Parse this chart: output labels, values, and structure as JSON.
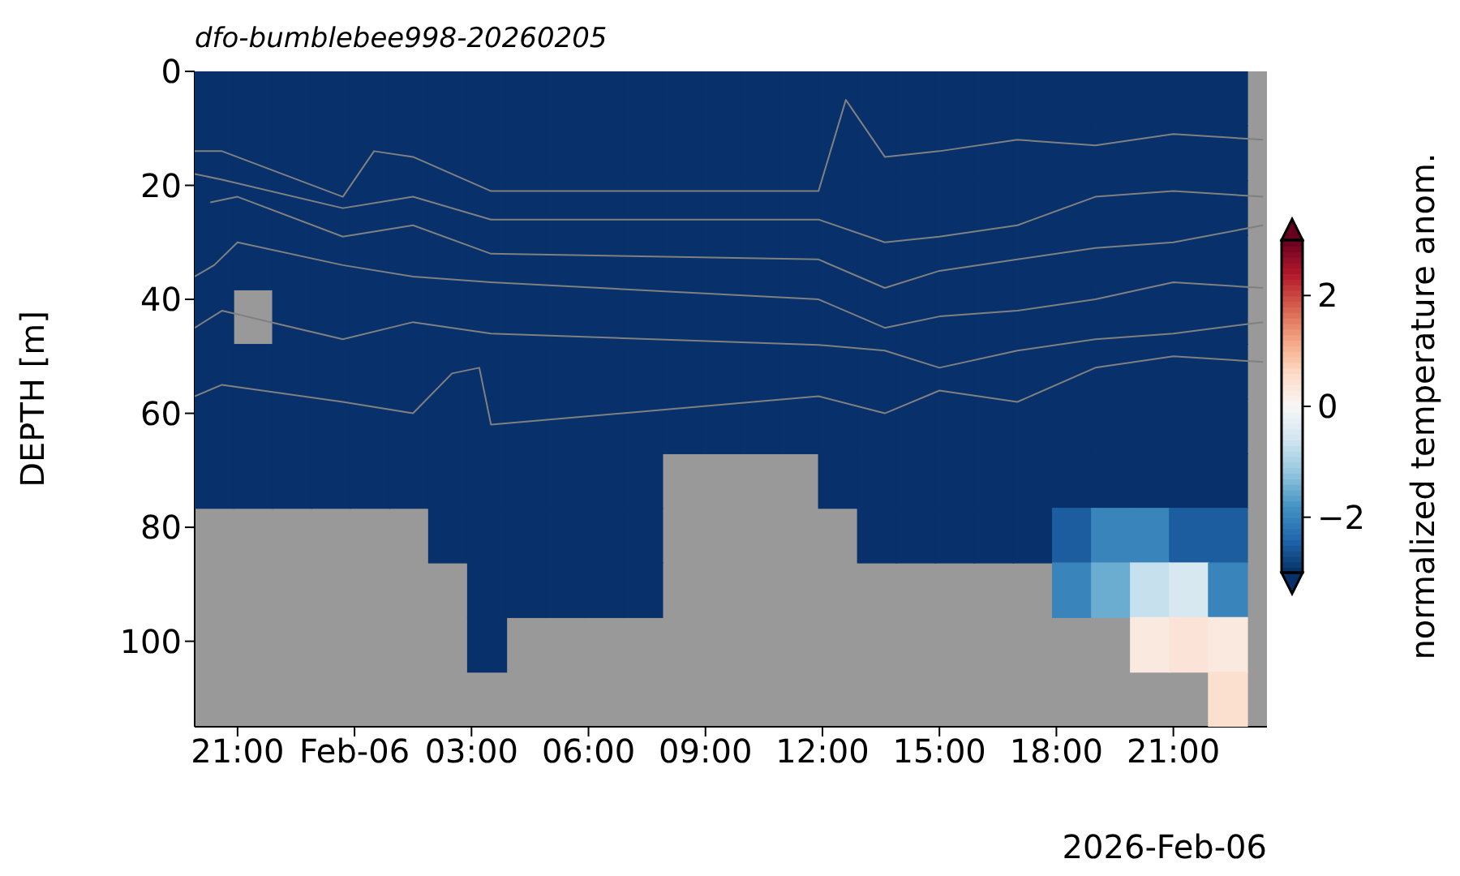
{
  "chart_data": {
    "type": "heatmap",
    "title": "dfo-bumblebee998-20260205",
    "ylabel": "DEPTH [m]",
    "clabel": "normalized temperature anom.",
    "annotations": [
      "2026-Feb-06"
    ],
    "x": [
      "2026-02-05T20:24",
      "2026-02-05T21:24",
      "2026-02-05T22:24",
      "2026-02-05T23:24",
      "2026-02-06T00:24",
      "2026-02-06T01:24",
      "2026-02-06T02:24",
      "2026-02-06T03:24",
      "2026-02-06T04:24",
      "2026-02-06T05:24",
      "2026-02-06T06:24",
      "2026-02-06T07:24",
      "2026-02-06T08:24",
      "2026-02-06T09:24",
      "2026-02-06T10:24",
      "2026-02-06T11:24",
      "2026-02-06T12:24",
      "2026-02-06T13:24",
      "2026-02-06T14:24",
      "2026-02-06T15:24",
      "2026-02-06T16:24",
      "2026-02-06T17:24",
      "2026-02-06T18:24",
      "2026-02-06T19:24",
      "2026-02-06T20:24",
      "2026-02-06T21:24",
      "2026-02-06T22:24"
    ],
    "cells": [
      [
        -3,
        -3,
        -3,
        -3,
        -3,
        -3,
        -3,
        -3,
        -3,
        -3,
        -3,
        -3,
        -3,
        -3,
        -3,
        -3,
        -3,
        -3,
        -3,
        -3,
        -3,
        -3,
        -3,
        -3,
        -3,
        -3,
        -3
      ],
      [
        -3,
        -3,
        -3,
        -3,
        -3,
        -3,
        -3,
        -3,
        -3,
        -3,
        -3,
        -3,
        -3,
        -3,
        -3,
        -3,
        -3,
        -3,
        -3,
        -3,
        -3,
        -3,
        -3,
        -3,
        -3,
        -3,
        -3
      ],
      [
        -3,
        -3,
        -3,
        -3,
        -3,
        -3,
        -3,
        -3,
        -3,
        -3,
        -3,
        -3,
        -3,
        -3,
        -3,
        -3,
        -3,
        -3,
        -3,
        -3,
        -3,
        -3,
        -3,
        -3,
        -3,
        -3,
        -3
      ],
      [
        -3,
        -3,
        -3,
        -3,
        -3,
        -3,
        -3,
        -3,
        -3,
        -3,
        -3,
        -3,
        -3,
        -3,
        -3,
        -3,
        -3,
        -3,
        -3,
        -3,
        -3,
        -3,
        -3,
        -3,
        -3,
        -3,
        -3
      ],
      [
        -3,
        null,
        -3,
        -3,
        -3,
        -3,
        -3,
        -3,
        -3,
        -3,
        -3,
        -3,
        -3,
        -3,
        -3,
        -3,
        -3,
        -3,
        -3,
        -3,
        -3,
        -3,
        -3,
        -3,
        -3,
        -3,
        -3
      ],
      [
        -3,
        -3,
        -3,
        -3,
        -3,
        -3,
        -3,
        -3,
        -3,
        -3,
        -3,
        -3,
        -3,
        -3,
        -3,
        -3,
        -3,
        -3,
        -3,
        -3,
        -3,
        -3,
        -3,
        -3,
        -3,
        -3,
        -3
      ],
      [
        -3,
        -3,
        -3,
        -3,
        -3,
        -3,
        -3,
        -3,
        -3,
        -3,
        -3,
        -3,
        -3,
        -3,
        -3,
        -3,
        -3,
        -3,
        -3,
        -3,
        -3,
        -3,
        -3,
        -3,
        -3,
        -3,
        -3
      ],
      [
        -3,
        -3,
        -3,
        -3,
        -3,
        -3,
        -3,
        -3,
        -3,
        -3,
        -3,
        -3,
        null,
        null,
        null,
        null,
        -3,
        -3,
        -3,
        -3,
        -3,
        -3,
        -3,
        -3,
        -3,
        -3,
        -3
      ],
      [
        null,
        null,
        null,
        null,
        null,
        null,
        -3,
        -3,
        -3,
        -3,
        -3,
        -3,
        null,
        null,
        null,
        null,
        null,
        -3,
        -3,
        -3,
        -3,
        -3,
        -2.5,
        -2,
        -2,
        -2.5,
        -2.5
      ],
      [
        null,
        null,
        null,
        null,
        null,
        null,
        null,
        -3,
        -3,
        -3,
        -3,
        -3,
        null,
        null,
        null,
        null,
        null,
        null,
        null,
        null,
        null,
        null,
        -2,
        -1.5,
        -0.7,
        -0.5,
        -2
      ],
      [
        null,
        null,
        null,
        null,
        null,
        null,
        null,
        -3,
        null,
        null,
        null,
        null,
        null,
        null,
        null,
        null,
        null,
        null,
        null,
        null,
        null,
        null,
        null,
        null,
        0.3,
        0.4,
        0.3
      ],
      [
        null,
        null,
        null,
        null,
        null,
        null,
        null,
        null,
        null,
        null,
        null,
        null,
        null,
        null,
        null,
        null,
        null,
        null,
        null,
        null,
        null,
        null,
        null,
        null,
        null,
        null,
        0.5
      ]
    ],
    "clim": [
      -3,
      3
    ],
    "cticks": [
      {
        "value": -2,
        "label": "−2"
      },
      0,
      2
    ],
    "xlim": [
      "2026-02-05T19:54",
      "2026-02-06T23:24"
    ],
    "ylim": [
      115,
      0
    ],
    "xticks": [
      {
        "value": "2026-02-05T21:00",
        "label": "21:00"
      },
      {
        "value": "2026-02-06T00:00",
        "label": "Feb-06"
      },
      {
        "value": "2026-02-06T03:00",
        "label": "03:00"
      },
      {
        "value": "2026-02-06T06:00",
        "label": "06:00"
      },
      {
        "value": "2026-02-06T09:00",
        "label": "09:00"
      },
      {
        "value": "2026-02-06T12:00",
        "label": "12:00"
      },
      {
        "value": "2026-02-06T15:00",
        "label": "15:00"
      },
      {
        "value": "2026-02-06T18:00",
        "label": "18:00"
      },
      {
        "value": "2026-02-06T21:00",
        "label": "21:00"
      }
    ],
    "yticks": [
      0,
      20,
      40,
      60,
      80,
      100
    ],
    "marker": "none",
    "line_style": "solid",
    "series": [
      {
        "type": "line",
        "color": "#808080",
        "x": [
          "2026-02-05T19:54",
          "2026-02-05T20:36",
          "2026-02-05T23:42",
          "2026-02-06T00:30",
          "2026-02-06T01:30",
          "2026-02-06T03:30",
          "2026-02-06T11:54",
          "2026-02-06T12:36",
          "2026-02-06T13:36",
          "2026-02-06T15:00",
          "2026-02-06T17:00",
          "2026-02-06T19:00",
          "2026-02-06T21:00",
          "2026-02-06T23:18"
        ],
        "values": [
          14,
          14,
          22,
          14,
          15,
          21,
          21,
          5,
          15,
          14,
          12,
          13,
          11,
          12
        ]
      },
      {
        "type": "line",
        "color": "#808080",
        "x": [
          "2026-02-05T19:54",
          "2026-02-05T20:36",
          "2026-02-05T23:42",
          "2026-02-06T01:30",
          "2026-02-06T03:30",
          "2026-02-06T11:54",
          "2026-02-06T13:36",
          "2026-02-06T15:00",
          "2026-02-06T17:00",
          "2026-02-06T19:00",
          "2026-02-06T21:00",
          "2026-02-06T23:18"
        ],
        "values": [
          18,
          19,
          24,
          22,
          26,
          26,
          30,
          29,
          27,
          22,
          21,
          22
        ]
      },
      {
        "type": "line",
        "color": "#808080",
        "x": [
          "2026-02-05T20:18",
          "2026-02-05T21:00",
          "2026-02-05T23:42",
          "2026-02-06T01:30",
          "2026-02-06T03:30",
          "2026-02-06T11:54",
          "2026-02-06T13:36",
          "2026-02-06T15:00",
          "2026-02-06T17:00",
          "2026-02-06T19:00",
          "2026-02-06T21:00",
          "2026-02-06T23:18"
        ],
        "values": [
          23,
          22,
          29,
          27,
          32,
          33,
          38,
          35,
          33,
          31,
          30,
          27
        ]
      },
      {
        "type": "line",
        "color": "#808080",
        "x": [
          "2026-02-05T19:54",
          "2026-02-05T20:24",
          "2026-02-05T21:00",
          "2026-02-05T23:42",
          "2026-02-06T01:30",
          "2026-02-06T03:30",
          "2026-02-06T11:54",
          "2026-02-06T13:36",
          "2026-02-06T15:00",
          "2026-02-06T17:00",
          "2026-02-06T19:00",
          "2026-02-06T21:00",
          "2026-02-06T23:18"
        ],
        "values": [
          36,
          34,
          30,
          34,
          36,
          37,
          40,
          45,
          43,
          42,
          40,
          37,
          38
        ]
      },
      {
        "type": "line",
        "color": "#808080",
        "x": [
          "2026-02-05T19:54",
          "2026-02-05T20:36",
          "2026-02-05T23:42",
          "2026-02-06T01:30",
          "2026-02-06T03:30",
          "2026-02-06T11:54",
          "2026-02-06T13:36",
          "2026-02-06T15:00",
          "2026-02-06T17:00",
          "2026-02-06T19:00",
          "2026-02-06T21:00",
          "2026-02-06T23:18"
        ],
        "values": [
          45,
          42,
          47,
          44,
          46,
          48,
          49,
          52,
          49,
          47,
          46,
          44
        ]
      },
      {
        "type": "line",
        "color": "#808080",
        "x": [
          "2026-02-05T19:54",
          "2026-02-05T20:36",
          "2026-02-05T23:42",
          "2026-02-06T01:30",
          "2026-02-06T02:30",
          "2026-02-06T03:12",
          "2026-02-06T03:30",
          "2026-02-06T11:54",
          "2026-02-06T13:36",
          "2026-02-06T15:00",
          "2026-02-06T17:00",
          "2026-02-06T19:00",
          "2026-02-06T21:00",
          "2026-02-06T23:18"
        ],
        "values": [
          57,
          55,
          58,
          60,
          53,
          52,
          62,
          57,
          60,
          56,
          58,
          52,
          50,
          51
        ]
      }
    ]
  }
}
